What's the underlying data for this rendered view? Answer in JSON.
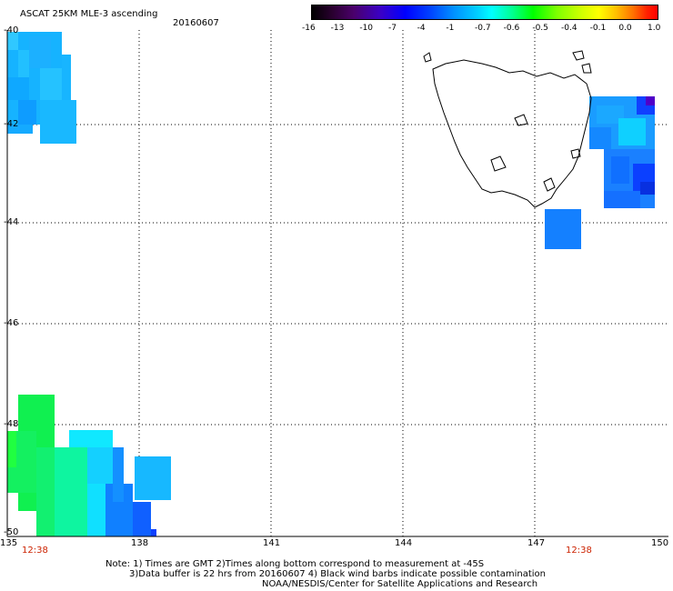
{
  "header": {
    "title": "ASCAT 25KM MLE-3 ascending",
    "date": "20160607"
  },
  "colorbar": {
    "labels": [
      "-16",
      "-13",
      "-10",
      "-7",
      "-4",
      "-1",
      "-0.7",
      "-0.6",
      "-0.5",
      "-0.4",
      "-0.1",
      "0.0",
      "1.0"
    ]
  },
  "axes": {
    "y_ticks": [
      "-40",
      "-42",
      "-44",
      "-46",
      "-48",
      "-50"
    ],
    "x_ticks": [
      "135",
      "138",
      "141",
      "144",
      "147",
      "150"
    ],
    "time_labels": [
      "12:38",
      "12:38"
    ]
  },
  "footer": {
    "line1": "Note: 1) Times are GMT 2)Times along bottom correspond to measurement at -45S",
    "line2": "3)Data buffer is 22 hrs from 20160607 4) Black wind barbs indicate possible contamination",
    "line3": "NOAA/NESDIS/Center for Satellite Applications and Research"
  },
  "colors": {
    "land_outline": "#000000",
    "grid": "#000000",
    "time_label": "#cc2200"
  },
  "map_regions": [
    "Tasmania coastline"
  ]
}
